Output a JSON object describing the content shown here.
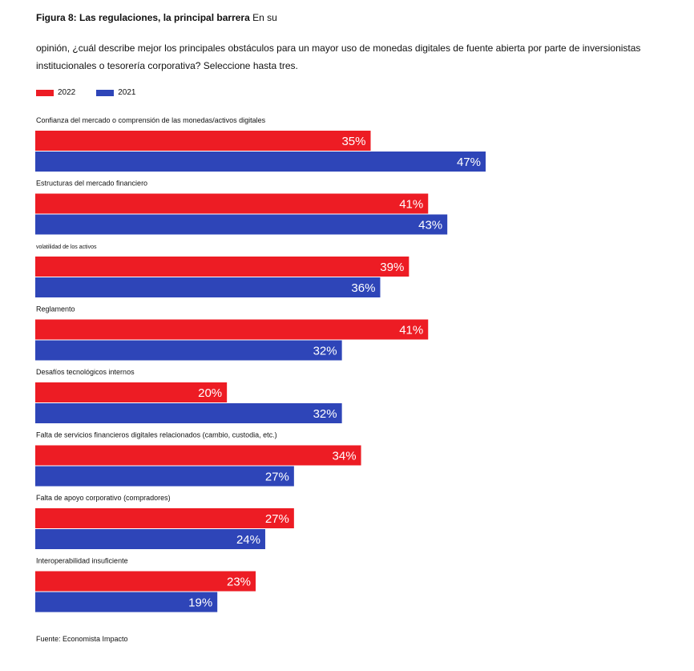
{
  "header": {
    "title_bold": "Figura 8: Las regulaciones, la principal barrera",
    "title_rest": " En su",
    "subtitle": "opinión, ¿cuál describe mejor los principales obstáculos para un mayor uso de monedas digitales de fuente abierta por parte de inversionistas institucionales o tesorería corporativa? Seleccione hasta tres."
  },
  "legend": [
    {
      "label": "2022",
      "color": "#ed1c24"
    },
    {
      "label": "2021",
      "color": "#2e45b8"
    }
  ],
  "chart_data": {
    "type": "bar",
    "orientation": "horizontal",
    "categories": [
      "Confianza del mercado o comprensión de las monedas/activos digitales",
      "Estructuras del mercado financiero",
      "volatilidad de los activos",
      "Reglamento",
      "Desafíos tecnológicos internos",
      "Falta de servicios financieros digitales relacionados (cambio, custodia, etc.)",
      "Falta de apoyo corporativo (compradores)",
      "Interoperabilidad insuficiente"
    ],
    "series": [
      {
        "name": "2022",
        "color": "#ed1c24",
        "values": [
          35,
          41,
          39,
          41,
          20,
          34,
          27,
          23
        ]
      },
      {
        "name": "2021",
        "color": "#2e45b8",
        "values": [
          47,
          43,
          36,
          32,
          32,
          27,
          24,
          19
        ]
      }
    ],
    "value_suffix": "%",
    "xlim": [
      0,
      47
    ],
    "grid": false,
    "legend_position": "top-left"
  },
  "footer": {
    "source": "Fuente: Economista Impacto"
  }
}
